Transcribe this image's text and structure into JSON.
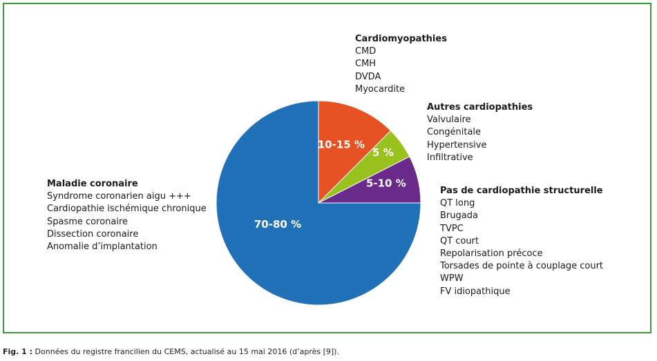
{
  "chart_data": {
    "type": "pie",
    "slices": [
      {
        "label": "Maladie coronaire",
        "value_label": "70-80 %",
        "value": 75,
        "color": "#2171b8"
      },
      {
        "label": "Cardiomyopathies",
        "value_label": "10-15 %",
        "value": 12.5,
        "color": "#e65223"
      },
      {
        "label": "Autres cardiopathies",
        "value_label": "5 %",
        "value": 5,
        "color": "#99c21f"
      },
      {
        "label": "Pas de cardiopathie structurelle",
        "value_label": "5-10 %",
        "value": 7.5,
        "color": "#6a2a8a"
      }
    ],
    "annotations": [
      {
        "title": "Cardiomyopathies",
        "items": [
          "CMD",
          "CMH",
          "DVDA",
          "Myocardite"
        ]
      },
      {
        "title": "Autres cardiopathies",
        "items": [
          "Valvulaire",
          "Congénitale",
          "Hypertensive",
          "Infiltrative"
        ]
      },
      {
        "title": "Pas de cardiopathie structurelle",
        "items": [
          "QT long",
          "Brugada",
          "TVPC",
          "QT court",
          "Repolarisation précoce",
          "Torsades de pointe à couplage court",
          "WPW",
          "FV idiopathique"
        ]
      },
      {
        "title": "Maladie coronaire",
        "items": [
          "Syndrome coronarien aigu +++",
          "Cardiopathie ischémique chronique",
          "Spasme coronaire",
          "Dissection coronaire",
          "Anomalie d’implantation"
        ]
      }
    ]
  },
  "caption": {
    "label": "Fig. 1 :",
    "text": " Données du registre francilien du CEMS, actualisé au 15 mai 2016 (d’après [9])."
  },
  "colors": {
    "frame": "#3a9a3a",
    "text": "#1a1a1a"
  }
}
